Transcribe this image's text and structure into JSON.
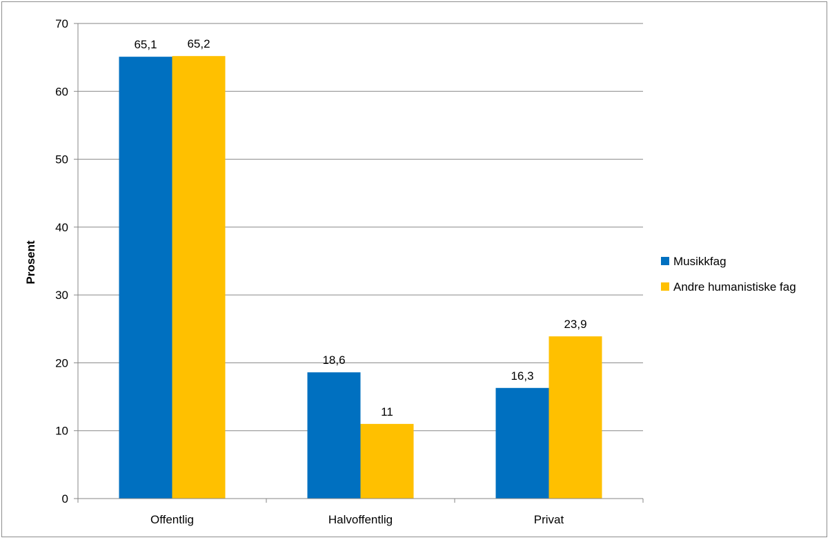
{
  "chart_data": {
    "type": "bar",
    "categories": [
      "Offentlig",
      "Halvoffentlig",
      "Privat"
    ],
    "series": [
      {
        "name": "Musikkfag",
        "values": [
          65.1,
          18.6,
          16.3
        ],
        "labels": [
          "65,1",
          "18,6",
          "16,3"
        ],
        "color": "#0070C0"
      },
      {
        "name": "Andre humanistiske fag",
        "values": [
          65.2,
          11,
          23.9
        ],
        "labels": [
          "65,2",
          "11",
          "23,9"
        ],
        "color": "#FFC000"
      }
    ],
    "title": "",
    "xlabel": "",
    "ylabel": "Prosent",
    "ylim": [
      0,
      70
    ],
    "yticks": [
      "0",
      "10",
      "20",
      "30",
      "40",
      "50",
      "60",
      "70"
    ],
    "grid": true,
    "legend_position": "right"
  }
}
